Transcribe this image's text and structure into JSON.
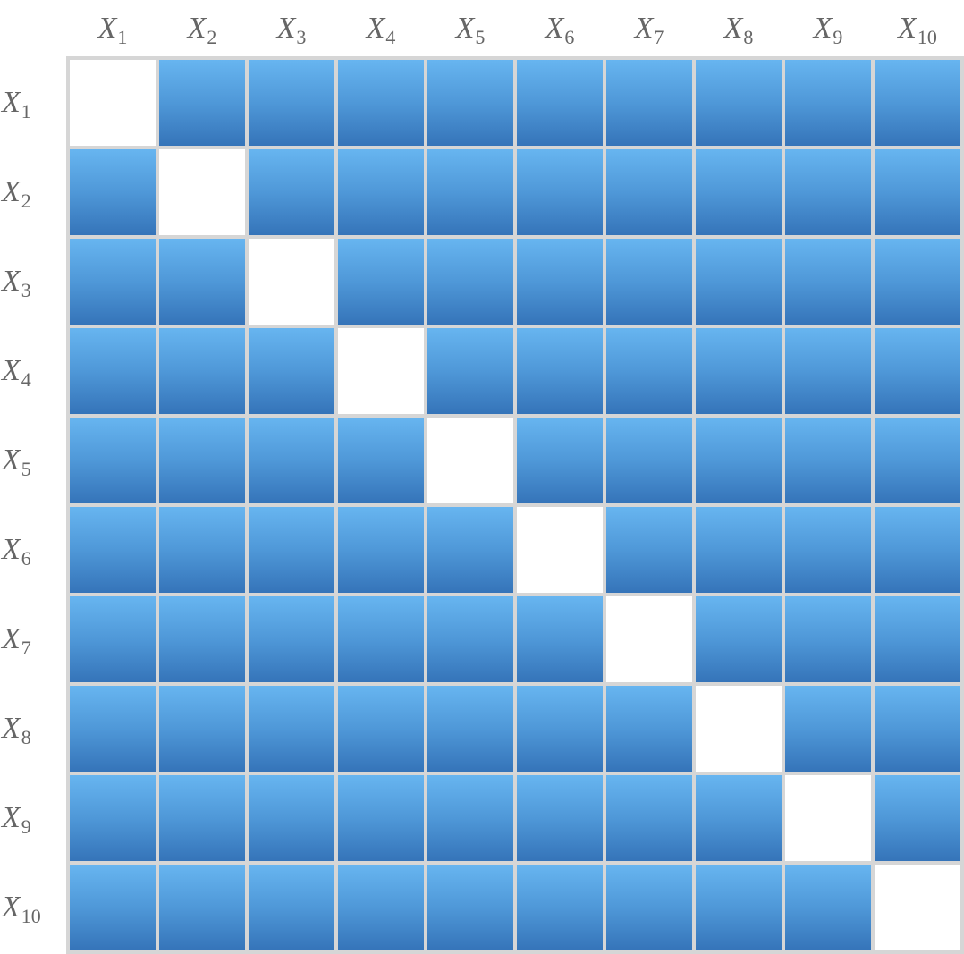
{
  "variable_symbol": "X",
  "columns": [
    "1",
    "2",
    "3",
    "4",
    "5",
    "6",
    "7",
    "8",
    "9",
    "10"
  ],
  "rows": [
    "1",
    "2",
    "3",
    "4",
    "5",
    "6",
    "7",
    "8",
    "9",
    "10"
  ],
  "colors": {
    "cell_top": "#67b5f0",
    "cell_bottom": "#3574b9",
    "diagonal_cell": "#ffffff",
    "grid_line": "#d6d6d6",
    "label_text": "#666666"
  }
}
